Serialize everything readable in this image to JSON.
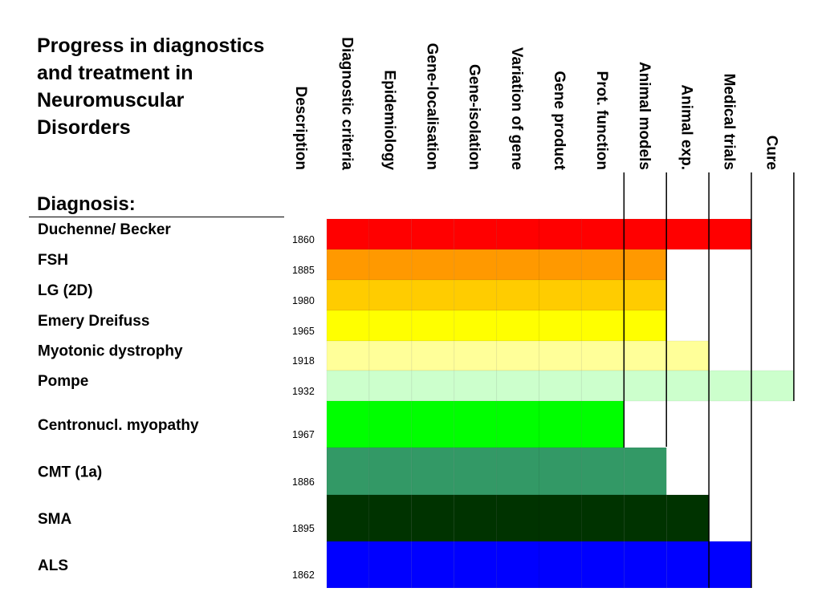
{
  "title": "Progress in diagnostics and treatment in Neuromuscular Disorders",
  "diagnosis_heading": "Diagnosis:",
  "chart_data": {
    "type": "table",
    "columns": [
      "Description",
      "Diagnostic criteria",
      "Epidemiology",
      "Gene-localisation",
      "Gene-isolation",
      "Variation of gene",
      "Gene product",
      "Prot. function",
      "Animal models",
      "Animal exp.",
      "Medical trials",
      "Cure"
    ],
    "rows": [
      {
        "disorder": "Duchenne/ Becker",
        "year": "1860",
        "stages_reached": 10,
        "color": "#ff0000"
      },
      {
        "disorder": "FSH",
        "year": "1885",
        "stages_reached": 8,
        "color": "#ff9900"
      },
      {
        "disorder": "LG (2D)",
        "year": "1980",
        "stages_reached": 8,
        "color": "#ffcc00"
      },
      {
        "disorder": "Emery Dreifuss",
        "year": "1965",
        "stages_reached": 8,
        "color": "#ffff00"
      },
      {
        "disorder": "Myotonic dystrophy",
        "year": "1918",
        "stages_reached": 9,
        "color": "#ffff99"
      },
      {
        "disorder": "Pompe",
        "year": "1932",
        "stages_reached": 11,
        "color": "#ccffcc"
      },
      {
        "disorder": "Centronucl. myopathy",
        "year": "1967",
        "stages_reached": 7,
        "color": "#00ff00"
      },
      {
        "disorder": "CMT (1a)",
        "year": "1886",
        "stages_reached": 8,
        "color": "#339966"
      },
      {
        "disorder": "SMA",
        "year": "1895",
        "stages_reached": 9,
        "color": "#003300"
      },
      {
        "disorder": "ALS",
        "year": "1862",
        "stages_reached": 10,
        "color": "#0000ff"
      }
    ]
  }
}
